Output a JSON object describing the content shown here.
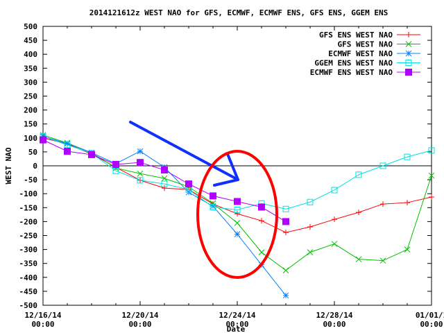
{
  "chart_data": {
    "type": "line",
    "title": "2014121612z WEST NAO for GFS, ECMWF, ECMWF ENS, GFS ENS, GGEM ENS",
    "xlabel": "Date",
    "ylabel": "WEST NAO",
    "ylim": [
      -500,
      500
    ],
    "yticks": [
      500,
      450,
      400,
      350,
      300,
      250,
      200,
      150,
      100,
      50,
      0,
      -50,
      -100,
      -150,
      -200,
      -250,
      -300,
      -350,
      -400,
      -450,
      -500
    ],
    "xtick_labels": [
      {
        "day": 0,
        "date": "12/16/14",
        "time": "00:00"
      },
      {
        "day": 4,
        "date": "12/20/14",
        "time": "00:00"
      },
      {
        "day": 8,
        "date": "12/24/14",
        "time": "00:00"
      },
      {
        "day": 12,
        "date": "12/28/14",
        "time": "00:00"
      },
      {
        "day": 16,
        "date": "01/01/1",
        "time": "00:00"
      }
    ],
    "x_days": [
      0,
      1,
      2,
      3,
      4,
      5,
      6,
      7,
      8,
      9,
      10,
      11,
      12,
      13,
      14,
      15,
      16
    ],
    "grid": false,
    "zero_line": true,
    "legend_position": "top-right",
    "series": [
      {
        "name": "GFS ENS WEST NAO",
        "color": "#ff0000",
        "marker": "plus",
        "x": [
          0,
          1,
          2,
          3,
          4,
          5,
          6,
          7,
          8,
          9,
          10,
          11,
          12,
          13,
          14,
          15,
          16
        ],
        "values": [
          100,
          78,
          42,
          -5,
          -52,
          -80,
          -85,
          -137,
          -172,
          -197,
          -239,
          -219,
          -192,
          -167,
          -137,
          -132,
          -112
        ]
      },
      {
        "name": "GFS WEST NAO",
        "color": "#00c000",
        "marker": "x",
        "x": [
          0,
          1,
          2,
          3,
          4,
          5,
          6,
          7,
          8,
          9,
          10,
          11,
          12,
          13,
          14,
          15,
          16
        ],
        "values": [
          110,
          82,
          47,
          -8,
          -28,
          -45,
          -75,
          -135,
          -205,
          -310,
          -375,
          -310,
          -280,
          -335,
          -340,
          -300,
          -35
        ]
      },
      {
        "name": "ECMWF WEST NAO",
        "color": "#0080ff",
        "marker": "star",
        "x": [
          0,
          1,
          2,
          3,
          4,
          5,
          6,
          7,
          8,
          9,
          10
        ],
        "values": [
          105,
          80,
          47,
          8,
          52,
          -5,
          -95,
          -145,
          -245,
          -355,
          -465
        ]
      },
      {
        "name": "GGEM ENS WEST NAO",
        "color": "#00e0e0",
        "marker": "open-square",
        "x": [
          0,
          1,
          2,
          3,
          4,
          5,
          6,
          7,
          8,
          9,
          10,
          11,
          12,
          13,
          14,
          15,
          16
        ],
        "values": [
          105,
          75,
          45,
          -18,
          -52,
          -65,
          -85,
          -148,
          -158,
          -135,
          -155,
          -130,
          -87,
          -32,
          0,
          32,
          55
        ]
      },
      {
        "name": "ECMWF ENS WEST NAO",
        "color": "#b000ff",
        "marker": "filled-square",
        "x": [
          0,
          1,
          2,
          3,
          4,
          5,
          6,
          7,
          8,
          9,
          10
        ],
        "values": [
          93,
          52,
          40,
          5,
          12,
          -15,
          -65,
          -108,
          -128,
          -148,
          -200
        ]
      }
    ],
    "annotations": [
      {
        "type": "arrow",
        "color": "#1030ff",
        "description": "hand-drawn blue arrow pointing toward Dec 23-24 divergence"
      },
      {
        "type": "ellipse",
        "color": "#ff0000",
        "description": "hand-drawn red ellipse around Dec 23-25 spread"
      }
    ]
  },
  "labels": {
    "title": "2014121612z WEST NAO for GFS, ECMWF, ECMWF ENS, GFS ENS, GGEM ENS",
    "ylabel": "WEST NAO",
    "xlabel": "Date"
  }
}
